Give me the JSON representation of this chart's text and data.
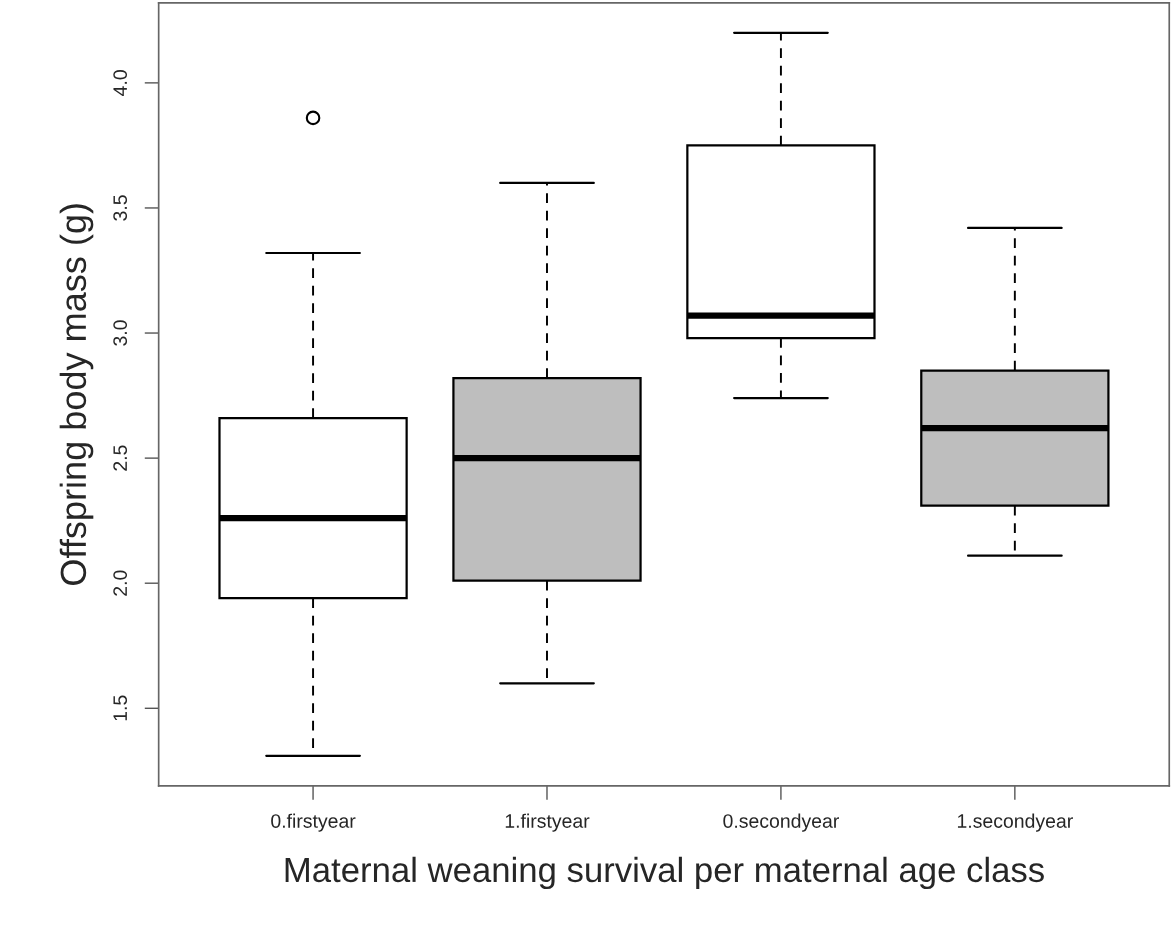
{
  "chart_data": {
    "type": "box",
    "xlabel": "Maternal weaning survival per maternal age class",
    "ylabel": "Offspring body mass (g)",
    "categories": [
      "0.firstyear",
      "1.firstyear",
      "0.secondyear",
      "1.secondyear"
    ],
    "boxes": [
      {
        "low": 1.31,
        "q1": 1.94,
        "median": 2.26,
        "q3": 2.66,
        "high": 3.32,
        "outliers": [
          3.86
        ]
      },
      {
        "low": 1.6,
        "q1": 2.01,
        "median": 2.5,
        "q3": 2.82,
        "high": 3.6
      },
      {
        "low": 2.74,
        "q1": 2.98,
        "median": 3.07,
        "q3": 3.75,
        "high": 4.2
      },
      {
        "low": 2.11,
        "q1": 2.31,
        "median": 2.62,
        "q3": 2.85,
        "high": 3.42
      }
    ],
    "colors": [
      "#ffffff",
      "#bebebe",
      "#ffffff",
      "#bebebe"
    ],
    "ylim": [
      1.19,
      4.32
    ],
    "yticks": [
      1.5,
      {
        "value": 2,
        "label": "2.0"
      },
      2.5,
      {
        "value": 3,
        "label": "3.0"
      },
      3.5,
      {
        "value": 4,
        "label": "4.0"
      }
    ]
  }
}
